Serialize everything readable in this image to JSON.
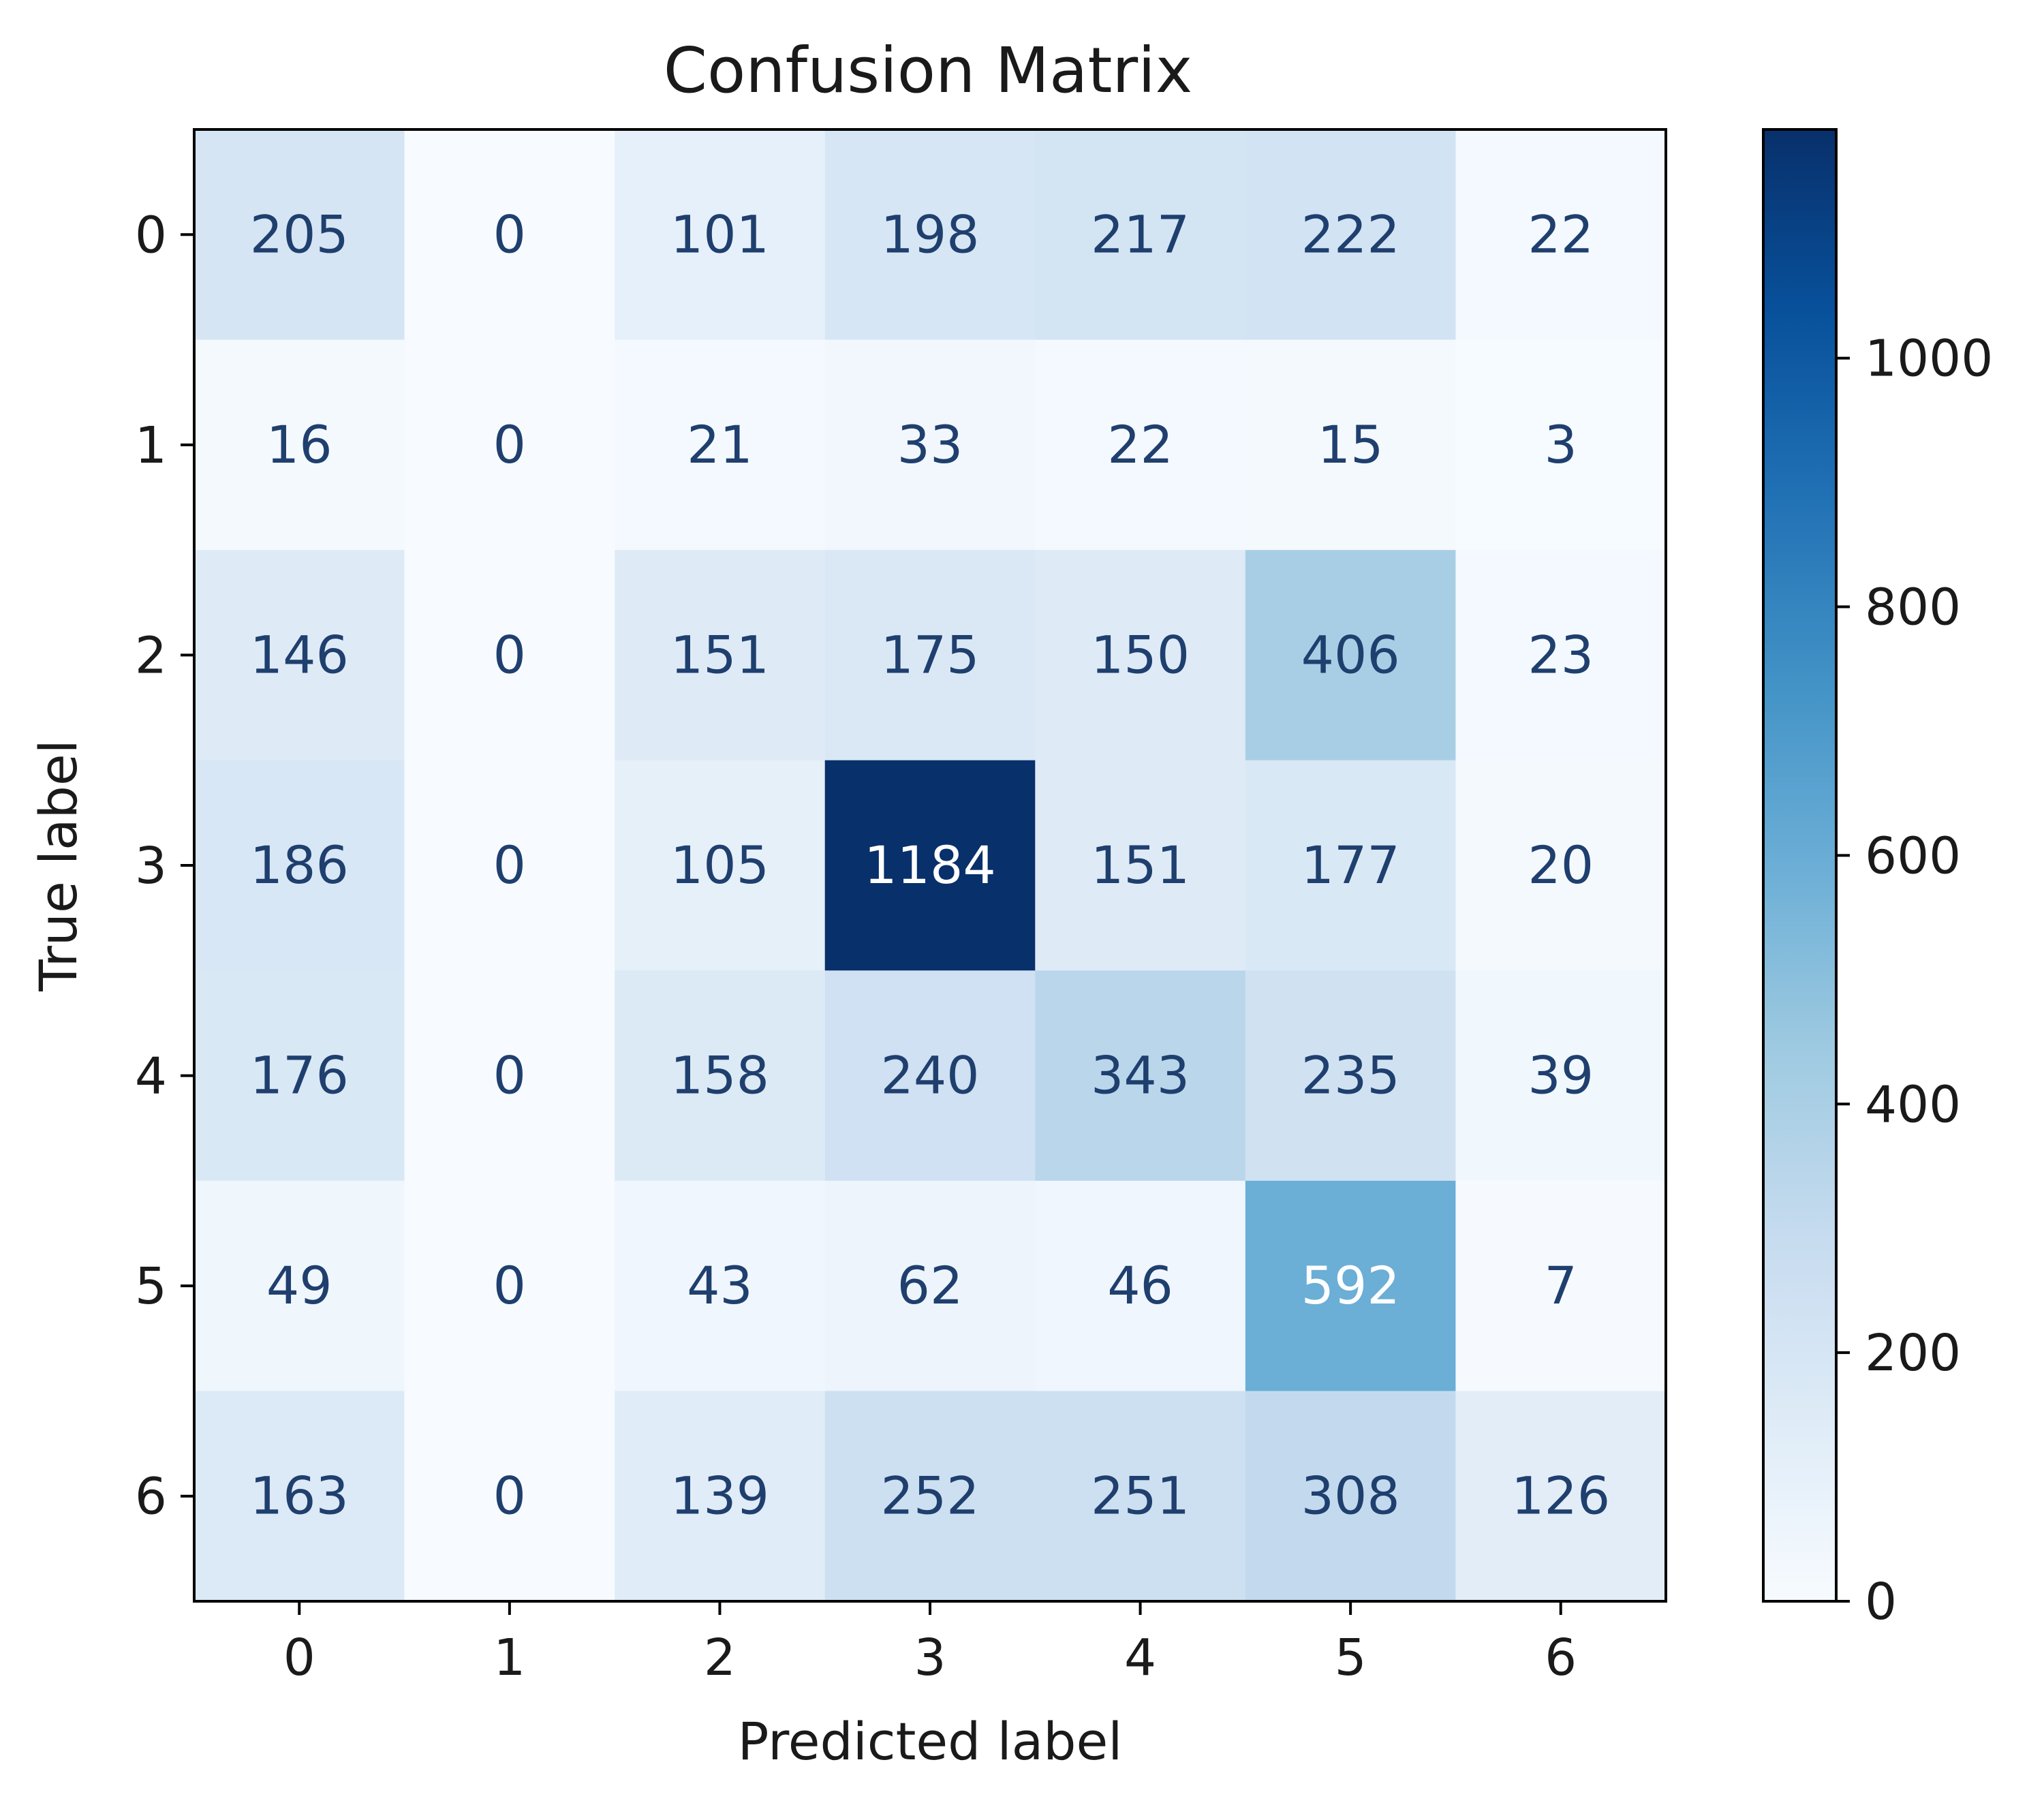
{
  "chart_data": {
    "type": "heatmap",
    "title": "Confusion Matrix",
    "xlabel": "Predicted label",
    "ylabel": "True label",
    "x_categories": [
      "0",
      "1",
      "2",
      "3",
      "4",
      "5",
      "6"
    ],
    "y_categories": [
      "0",
      "1",
      "2",
      "3",
      "4",
      "5",
      "6"
    ],
    "matrix": [
      [
        205,
        0,
        101,
        198,
        217,
        222,
        22
      ],
      [
        16,
        0,
        21,
        33,
        22,
        15,
        3
      ],
      [
        146,
        0,
        151,
        175,
        150,
        406,
        23
      ],
      [
        186,
        0,
        105,
        1184,
        151,
        177,
        20
      ],
      [
        176,
        0,
        158,
        240,
        343,
        235,
        39
      ],
      [
        49,
        0,
        43,
        62,
        46,
        592,
        7
      ],
      [
        163,
        0,
        139,
        252,
        251,
        308,
        126
      ]
    ],
    "colormap": "Blues",
    "color_range": [
      0,
      1184
    ],
    "colorbar": {
      "ticks": [
        0,
        200,
        400,
        600,
        800,
        1000
      ],
      "tick_labels": [
        "0",
        "200",
        "400",
        "600",
        "800",
        "1000"
      ]
    },
    "text_colors": {
      "dark": "#1f3f6e",
      "light": "#ffffff"
    },
    "grid": false
  }
}
